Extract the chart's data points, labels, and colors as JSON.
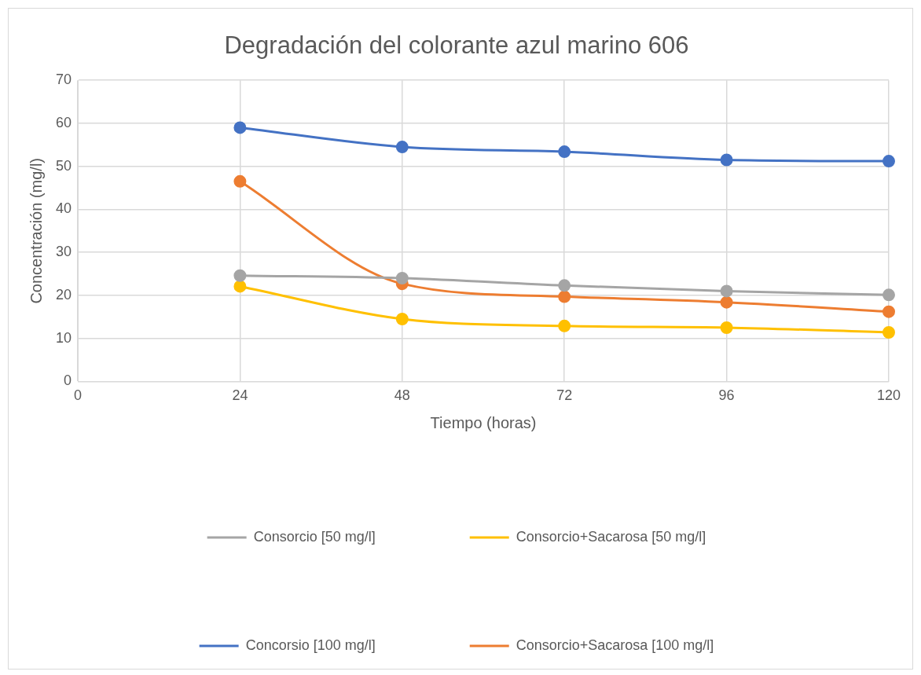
{
  "chart_data": {
    "type": "line",
    "title": "Degradación del colorante azul marino 606",
    "xlabel": "Tiempo (horas)",
    "ylabel": "Concentración (mg/l)",
    "x": [
      24,
      48,
      72,
      96,
      120
    ],
    "series": [
      {
        "name": "Consorcio [50 mg/l]",
        "color": "#a5a5a5",
        "values": [
          24.6,
          24.0,
          22.3,
          21.0,
          20.1
        ]
      },
      {
        "name": "Consorcio+Sacarosa [50 mg/l]",
        "color": "#ffc000",
        "values": [
          22.1,
          14.5,
          12.9,
          12.5,
          11.4
        ]
      },
      {
        "name": "Concorsio [100 mg/l]",
        "color": "#4472c4",
        "values": [
          59.0,
          54.5,
          53.4,
          51.5,
          51.2
        ]
      },
      {
        "name": "Consorcio+Sacarosa [100 mg/l]",
        "color": "#ed7d31",
        "values": [
          46.5,
          22.7,
          19.7,
          18.4,
          16.2
        ]
      }
    ],
    "xlim": [
      0,
      120
    ],
    "xticks": [
      0,
      24,
      48,
      72,
      96,
      120
    ],
    "ylim": [
      0,
      70
    ],
    "yticks": [
      0,
      10,
      20,
      30,
      40,
      50,
      60,
      70
    ],
    "grid": true,
    "legend": "bottom",
    "marker": "circle",
    "line_style": "solid"
  }
}
